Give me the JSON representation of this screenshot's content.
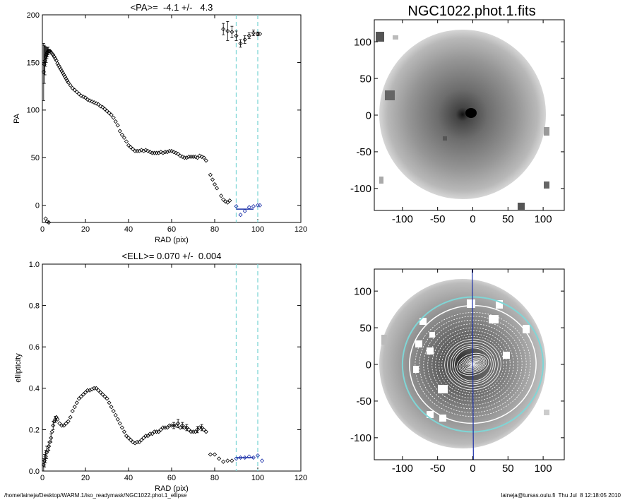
{
  "chart_data": [
    {
      "id": "pa",
      "type": "scatter",
      "title": "<PA>=  -4.1 +/-   4.3",
      "xlabel": "RAD (pix)",
      "ylabel": "PA",
      "xlim": [
        0,
        120
      ],
      "ylim": [
        -18,
        200
      ],
      "xticks": [
        0,
        20,
        40,
        60,
        80,
        100,
        120
      ],
      "yticks": [
        0,
        50,
        100,
        150,
        200
      ],
      "vlines": [
        90,
        100
      ],
      "vline_color": "#7fd6d6",
      "fit_color": "#1a2fa8",
      "series": [
        {
          "points": [
            [
              0.6,
              140
            ],
            [
              0.9,
              148
            ],
            [
              1.2,
              152
            ],
            [
              1.5,
              156
            ],
            [
              1.8,
              158
            ],
            [
              2.1,
              160
            ],
            [
              2.4,
              161
            ],
            [
              2.7,
              162
            ],
            [
              3,
              162
            ],
            [
              3.3,
              162
            ],
            [
              3.6,
              162
            ],
            [
              3.9,
              161
            ],
            [
              4.2,
              160
            ],
            [
              4.6,
              159
            ],
            [
              5,
              158
            ],
            [
              5.5,
              156
            ],
            [
              6,
              154
            ],
            [
              6.5,
              152
            ],
            [
              7,
              149
            ],
            [
              7.5,
              147
            ],
            [
              8,
              145
            ],
            [
              8.5,
              143
            ],
            [
              9,
              141
            ],
            [
              9.5,
              139
            ],
            [
              10,
              137
            ],
            [
              10.5,
              135
            ],
            [
              11,
              133
            ],
            [
              11.5,
              131
            ],
            [
              12,
              129
            ],
            [
              13,
              126
            ],
            [
              14,
              123
            ],
            [
              15,
              121
            ],
            [
              16,
              119
            ],
            [
              17,
              117
            ],
            [
              18,
              115
            ],
            [
              19,
              114
            ],
            [
              20,
              113
            ],
            [
              21,
              111
            ],
            [
              22,
              110
            ],
            [
              23,
              109
            ],
            [
              24,
              108
            ],
            [
              25,
              107
            ],
            [
              26,
              106
            ],
            [
              27,
              104
            ],
            [
              28,
              103
            ],
            [
              29,
              101
            ],
            [
              30,
              99
            ],
            [
              31,
              97
            ],
            [
              32,
              95
            ],
            [
              33,
              92
            ],
            [
              34,
              88
            ],
            [
              35,
              84
            ],
            [
              36,
              78
            ],
            [
              37,
              74
            ],
            [
              38,
              71
            ],
            [
              39,
              67
            ],
            [
              40,
              63
            ],
            [
              41,
              61
            ],
            [
              42,
              59
            ],
            [
              43,
              57
            ],
            [
              44,
              57
            ],
            [
              45,
              57
            ],
            [
              46,
              58
            ],
            [
              47,
              57
            ],
            [
              48,
              58
            ],
            [
              49,
              57
            ],
            [
              50,
              56
            ],
            [
              51,
              55
            ],
            [
              52,
              55
            ],
            [
              53,
              55
            ],
            [
              54,
              55
            ],
            [
              55,
              56
            ],
            [
              56,
              55
            ],
            [
              57,
              56
            ],
            [
              58,
              56
            ],
            [
              59,
              57
            ],
            [
              60,
              57
            ],
            [
              61,
              56
            ],
            [
              62,
              55
            ],
            [
              63,
              54
            ],
            [
              64,
              52
            ],
            [
              65,
              51
            ],
            [
              66,
              50
            ],
            [
              67,
              50
            ],
            [
              68,
              51
            ],
            [
              69,
              51
            ],
            [
              70,
              51
            ],
            [
              71,
              51
            ],
            [
              72,
              50
            ],
            [
              73,
              52
            ],
            [
              74,
              51
            ],
            [
              75,
              50
            ],
            [
              76,
              47
            ],
            [
              78,
              32
            ],
            [
              79,
              27
            ],
            [
              80,
              22
            ],
            [
              81,
              18
            ],
            [
              83,
              10
            ],
            [
              84,
              6
            ],
            [
              85,
              4
            ],
            [
              86,
              3
            ],
            [
              87,
              5
            ]
          ],
          "errors": [
            [
              0.6,
              30
            ],
            [
              0.9,
              20
            ],
            [
              1.2,
              15
            ],
            [
              1.5,
              10
            ],
            [
              1.8,
              8
            ],
            [
              2.1,
              6
            ],
            [
              2.4,
              5
            ],
            [
              2.7,
              4
            ]
          ]
        },
        {
          "points": [
            [
              84,
              185
            ],
            [
              86,
              183
            ],
            [
              88,
              182
            ],
            [
              90,
              178
            ],
            [
              92,
              170
            ],
            [
              94,
              174
            ],
            [
              96,
              178
            ],
            [
              98,
              181
            ],
            [
              100,
              180
            ],
            [
              101,
              180
            ]
          ],
          "errors": [
            [
              84,
              6
            ],
            [
              86,
              10
            ],
            [
              88,
              6
            ],
            [
              90,
              5
            ],
            [
              92,
              4
            ],
            [
              94,
              4
            ],
            [
              96,
              3
            ],
            [
              98,
              3
            ],
            [
              100,
              2
            ]
          ]
        },
        {
          "points": [
            [
              90,
              -1
            ],
            [
              92,
              -10
            ],
            [
              94,
              -6
            ],
            [
              96,
              -2
            ],
            [
              98,
              -1
            ],
            [
              100,
              0
            ],
            [
              101,
              0
            ]
          ],
          "color": "#1a2fa8"
        },
        {
          "points": [
            [
              1.5,
              -14
            ],
            [
              2.2,
              -17
            ],
            [
              3,
              -18
            ]
          ]
        }
      ],
      "fit_line": {
        "x": [
          90,
          98
        ],
        "y": [
          -4,
          -4
        ]
      }
    },
    {
      "id": "ell",
      "type": "scatter",
      "title": "<ELL>= 0.070 +/-  0.004",
      "xlabel": "RAD (pix)",
      "ylabel": "ellipticity",
      "xlim": [
        0,
        120
      ],
      "ylim": [
        0,
        1.0
      ],
      "xticks": [
        0,
        20,
        40,
        60,
        80,
        100,
        120
      ],
      "yticks": [
        0.0,
        0.2,
        0.4,
        0.6,
        0.8,
        1.0
      ],
      "ytick_labels": [
        "0.0",
        "0.2",
        "0.4",
        "0.6",
        "0.8",
        "1.0"
      ],
      "vlines": [
        90,
        100
      ],
      "vline_color": "#7fd6d6",
      "fit_color": "#1a2fa8",
      "series": [
        {
          "points": [
            [
              0.6,
              0.03
            ],
            [
              1,
              0.05
            ],
            [
              1.5,
              0.07
            ],
            [
              2,
              0.09
            ],
            [
              2.5,
              0.1
            ],
            [
              3,
              0.12
            ],
            [
              3.5,
              0.14
            ],
            [
              4,
              0.16
            ],
            [
              4.5,
              0.19
            ],
            [
              5,
              0.22
            ],
            [
              5.5,
              0.24
            ],
            [
              6,
              0.25
            ],
            [
              6.5,
              0.26
            ],
            [
              7,
              0.25
            ],
            [
              8,
              0.23
            ],
            [
              9,
              0.22
            ],
            [
              10,
              0.22
            ],
            [
              11,
              0.23
            ],
            [
              12,
              0.24
            ],
            [
              13,
              0.26
            ],
            [
              14,
              0.29
            ],
            [
              15,
              0.31
            ],
            [
              16,
              0.33
            ],
            [
              17,
              0.35
            ],
            [
              18,
              0.36
            ],
            [
              19,
              0.37
            ],
            [
              20,
              0.38
            ],
            [
              21,
              0.39
            ],
            [
              22,
              0.39
            ],
            [
              23,
              0.395
            ],
            [
              24,
              0.4
            ],
            [
              25,
              0.4
            ],
            [
              26,
              0.39
            ],
            [
              27,
              0.38
            ],
            [
              28,
              0.37
            ],
            [
              29,
              0.36
            ],
            [
              30,
              0.35
            ],
            [
              31,
              0.33
            ],
            [
              32,
              0.31
            ],
            [
              33,
              0.29
            ],
            [
              34,
              0.27
            ],
            [
              35,
              0.25
            ],
            [
              36,
              0.23
            ],
            [
              37,
              0.21
            ],
            [
              38,
              0.19
            ],
            [
              39,
              0.17
            ],
            [
              40,
              0.16
            ],
            [
              41,
              0.15
            ],
            [
              42,
              0.14
            ],
            [
              43,
              0.135
            ],
            [
              44,
              0.14
            ],
            [
              45,
              0.14
            ],
            [
              46,
              0.15
            ],
            [
              47,
              0.16
            ],
            [
              48,
              0.17
            ],
            [
              49,
              0.17
            ],
            [
              50,
              0.18
            ],
            [
              51,
              0.18
            ],
            [
              52,
              0.19
            ],
            [
              53,
              0.19
            ],
            [
              54,
              0.19
            ],
            [
              55,
              0.2
            ],
            [
              56,
              0.21
            ],
            [
              57,
              0.21
            ],
            [
              58,
              0.21
            ],
            [
              59,
              0.22
            ],
            [
              60,
              0.22
            ],
            [
              61,
              0.22
            ],
            [
              62,
              0.22
            ],
            [
              63,
              0.23
            ],
            [
              64,
              0.21
            ],
            [
              65,
              0.22
            ],
            [
              66,
              0.21
            ],
            [
              67,
              0.21
            ],
            [
              68,
              0.2
            ],
            [
              69,
              0.19
            ],
            [
              70,
              0.19
            ],
            [
              71,
              0.19
            ],
            [
              72,
              0.2
            ],
            [
              73,
              0.21
            ],
            [
              74,
              0.21
            ],
            [
              75,
              0.2
            ],
            [
              76,
              0.19
            ],
            [
              78,
              0.08
            ],
            [
              80,
              0.08
            ],
            [
              82,
              0.06
            ],
            [
              84,
              0.045
            ],
            [
              86,
              0.05
            ],
            [
              88,
              0.05
            ]
          ],
          "errors": [
            [
              0.6,
              0.03
            ],
            [
              1,
              0.03
            ],
            [
              1.5,
              0.03
            ],
            [
              2,
              0.03
            ],
            [
              3,
              0.02
            ],
            [
              4,
              0.02
            ],
            [
              5,
              0.02
            ],
            [
              6,
              0.015
            ],
            [
              61,
              0.015
            ],
            [
              63,
              0.02
            ],
            [
              65,
              0.015
            ],
            [
              67,
              0.015
            ],
            [
              72,
              0.015
            ],
            [
              74,
              0.015
            ]
          ]
        },
        {
          "points": [
            [
              90,
              0.06
            ],
            [
              92,
              0.065
            ],
            [
              94,
              0.065
            ],
            [
              96,
              0.07
            ],
            [
              98,
              0.065
            ],
            [
              100,
              0.075
            ],
            [
              102,
              0.05
            ]
          ],
          "color": "#1a2fa8"
        }
      ],
      "fit_line": {
        "x": [
          90,
          98
        ],
        "y": [
          0.065,
          0.065
        ]
      }
    },
    {
      "id": "img",
      "type": "heatmap",
      "title": "NGC1022.phot.1.fits",
      "xlim": [
        -140,
        130
      ],
      "ylim": [
        -130,
        130
      ],
      "xticks": [
        -100,
        -50,
        0,
        50,
        100
      ],
      "yticks": [
        -100,
        -50,
        0,
        50,
        100
      ]
    },
    {
      "id": "ellipses",
      "type": "heatmap",
      "title": "",
      "xlim": [
        -140,
        130
      ],
      "ylim": [
        -130,
        130
      ],
      "xticks": [
        -100,
        -50,
        0,
        50,
        100
      ],
      "yticks": [
        -100,
        -50,
        0,
        50,
        100
      ],
      "pa_deg": -4.1,
      "ell": 0.07,
      "outer_radius": 100,
      "inner_radius": 90,
      "ring_color": "#7fd6d6",
      "line_color": "#1a2fa8"
    }
  ],
  "footer": {
    "path": "/home/laineja/Desktop/WARM.1/iso_readymask/NGC1022.phot.1_ellipse",
    "stamp": "laineja@tursas.oulu.fi  Thu Jul  8 12:18:05 2010"
  }
}
